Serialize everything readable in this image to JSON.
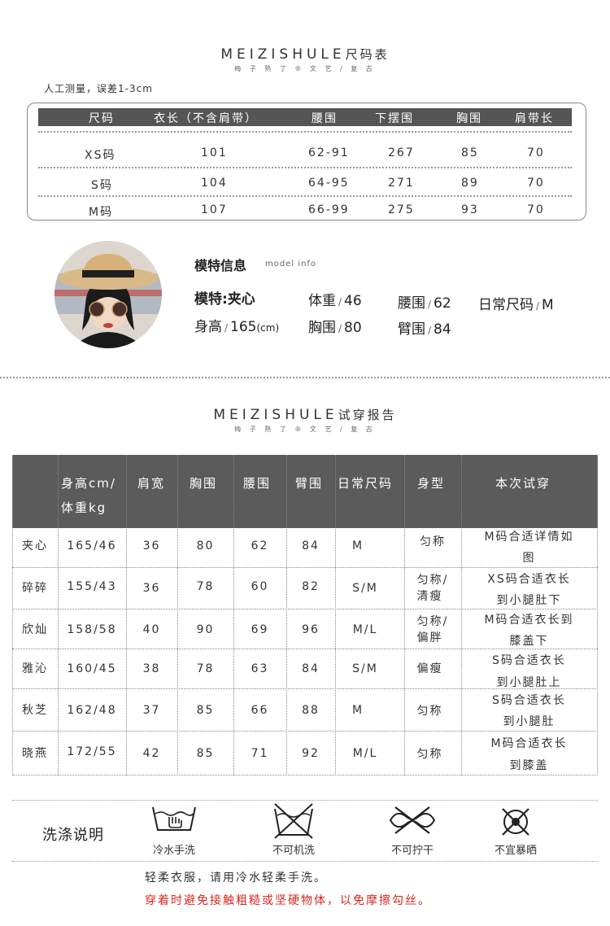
{
  "size_chart": {
    "brand_latin": "MEIZISHULE",
    "title_cn": "尺码表",
    "subtitle": "梅 子 熟 了 ® 文 艺 / 复 古",
    "note": "人工测量，误差1-3cm",
    "headers": [
      "尺码",
      "衣长（不含肩带）",
      "腰围",
      "下摆围",
      "胸围",
      "肩带长"
    ],
    "rows": [
      [
        "XS码",
        "101",
        "62-91",
        "267",
        "85",
        "70"
      ],
      [
        "S码",
        "104",
        "64-95",
        "271",
        "89",
        "70"
      ],
      [
        "M码",
        "107",
        "66-99",
        "275",
        "93",
        "70"
      ]
    ]
  },
  "model_info": {
    "title": "模特信息",
    "title_en": "model info",
    "name": "模特:夹心",
    "height_label": "身高",
    "height_value": "165",
    "height_unit": "(cm)",
    "weight_label": "体重",
    "weight_value": "46",
    "bust_label": "胸围",
    "bust_value": "80",
    "waist_label": "腰围",
    "waist_value": "62",
    "arm_label": "臂围",
    "arm_value": "84",
    "daily_size_label": "日常尺码",
    "daily_size_value": "M",
    "sep": "/"
  },
  "fitting_report": {
    "brand_latin": "MEIZISHULE",
    "title_cn": "试穿报告",
    "subtitle": "梅 子 熟 了 ® 文 艺 / 复 古",
    "headers": [
      "身高cm/",
      "体重kg",
      "肩宽",
      "胸围",
      "腰围",
      "臂围",
      "日常尺码",
      "身型",
      "本次试穿"
    ],
    "rows": [
      {
        "name": "夹心",
        "hw": "165/46",
        "shoulder": "36",
        "bust": "80",
        "waist": "62",
        "arm": "84",
        "size": "M",
        "body1": "匀称",
        "body2": "",
        "fit1": "M码合适详情如",
        "fit2": "图"
      },
      {
        "name": "碎碎",
        "hw": "155/43",
        "shoulder": "36",
        "bust": "78",
        "waist": "60",
        "arm": "82",
        "size": "S/M",
        "body1": "匀称/",
        "body2": "清瘦",
        "fit1": "XS码合适衣长",
        "fit2": "到小腿肚下"
      },
      {
        "name": "欣灿",
        "hw": "158/58",
        "shoulder": "40",
        "bust": "90",
        "waist": "69",
        "arm": "96",
        "size": "M/L",
        "body1": "匀称/",
        "body2": "偏胖",
        "fit1": "M码合适衣长到",
        "fit2": "膝盖下"
      },
      {
        "name": "雅沁",
        "hw": "160/45",
        "shoulder": "38",
        "bust": "78",
        "waist": "63",
        "arm": "84",
        "size": "S/M",
        "body1": "偏瘦",
        "body2": "",
        "fit1": "S码合适衣长",
        "fit2": "到小腿肚上"
      },
      {
        "name": "秋芝",
        "hw": "162/48",
        "shoulder": "37",
        "bust": "85",
        "waist": "66",
        "arm": "88",
        "size": "M",
        "body1": "匀称",
        "body2": "",
        "fit1": "S码合适衣长",
        "fit2": "到小腿肚"
      },
      {
        "name": "晓燕",
        "hw": "172/55",
        "shoulder": "42",
        "bust": "85",
        "waist": "71",
        "arm": "92",
        "size": "M/L",
        "body1": "匀称",
        "body2": "",
        "fit1": "M码合适衣长",
        "fit2": "到膝盖"
      }
    ]
  },
  "washing": {
    "title": "洗涤说明",
    "icons": [
      {
        "icon": "hand-wash-icon",
        "label": "冷水手洗"
      },
      {
        "icon": "no-machine-wash-icon",
        "label": "不可机洗"
      },
      {
        "icon": "no-wring-icon",
        "label": "不可拧干"
      },
      {
        "icon": "no-sun-dry-icon",
        "label": "不宜暴晒"
      }
    ],
    "note": "轻柔衣服，请用冷水轻柔手洗。",
    "warning": "穿着时避免接触粗糙或坚硬物体，以免摩擦勾丝。",
    "warning_color": "#d7261e"
  }
}
